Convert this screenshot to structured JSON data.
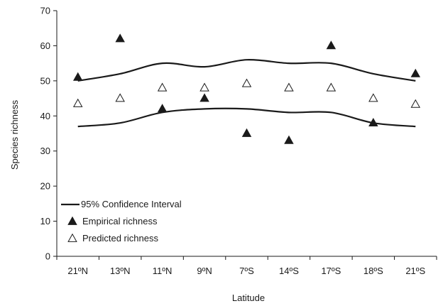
{
  "chart_data": {
    "type": "scatter",
    "title": "",
    "xlabel": "Latitude",
    "ylabel": "Species richness",
    "categories": [
      "21ºN",
      "13ºN",
      "11ºN",
      "9ºN",
      "7ºS",
      "14ºS",
      "17ºS",
      "18ºS",
      "21ºS"
    ],
    "ylim": [
      0,
      70
    ],
    "yticks": [
      0,
      10,
      20,
      30,
      40,
      50,
      60,
      70
    ],
    "grid": false,
    "legend_position": "bottom-left",
    "series": [
      {
        "name": "95% Confidence Interval",
        "kind": "band-lines",
        "upper": [
          50,
          52,
          55,
          54,
          56,
          55,
          55,
          52,
          50
        ],
        "lower": [
          37,
          38,
          41,
          42,
          42,
          41,
          41,
          38,
          37
        ]
      },
      {
        "name": "Empirical richness",
        "kind": "markers",
        "marker": "filled-triangle",
        "values": [
          51,
          62,
          42,
          45,
          35,
          33,
          60,
          38,
          52
        ]
      },
      {
        "name": "Predicted richness",
        "kind": "markers",
        "marker": "open-triangle",
        "values": [
          43.5,
          45,
          48,
          48,
          49.2,
          48,
          48,
          45,
          43.3
        ]
      }
    ]
  }
}
